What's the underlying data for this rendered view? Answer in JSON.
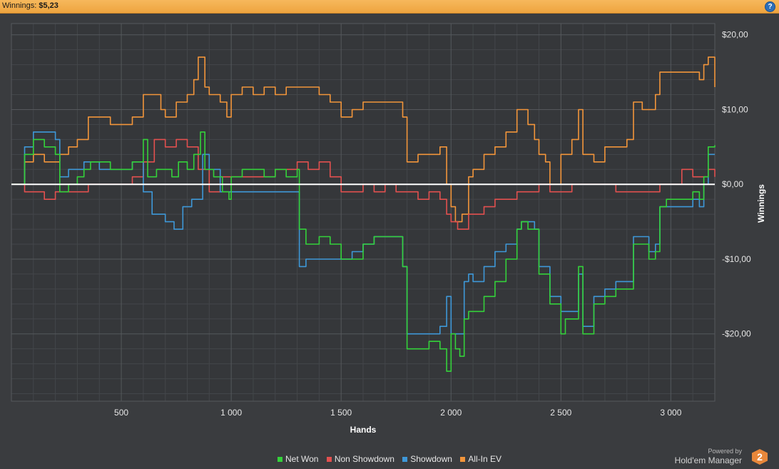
{
  "header": {
    "label": "Winnings:",
    "value": "$5,23",
    "help_icon": "?"
  },
  "colors": {
    "net_won": "#34d13a",
    "non_showdown": "#e2504f",
    "showdown": "#3e98d8",
    "allin_ev": "#f2953a",
    "zero_line": "#ffffff"
  },
  "brand": {
    "powered_by": "Powered by",
    "name": "Hold'em Manager",
    "logo_text": "2"
  },
  "chart_data": {
    "type": "line",
    "xlabel": "Hands",
    "ylabel": "Winnings",
    "xlim": [
      0,
      3200
    ],
    "ylim": [
      -29,
      21.5
    ],
    "x_ticks": [
      500,
      1000,
      1500,
      2000,
      2500,
      3000
    ],
    "x_tick_labels": [
      "500",
      "1 000",
      "1 500",
      "2 000",
      "2 500",
      "3 000"
    ],
    "y_ticks": [
      20,
      10,
      0,
      -10,
      -20
    ],
    "y_tick_labels": [
      "$20,00",
      "$10,00",
      "$0,00",
      "-$10,00",
      "-$20,00"
    ],
    "grid": true,
    "legend_position": "bottom",
    "series": [
      {
        "name": "Net Won",
        "color_key": "net_won",
        "points": [
          [
            0,
            0
          ],
          [
            50,
            0
          ],
          [
            60,
            4
          ],
          [
            100,
            6
          ],
          [
            150,
            5
          ],
          [
            200,
            4
          ],
          [
            220,
            -1
          ],
          [
            260,
            0
          ],
          [
            300,
            1
          ],
          [
            330,
            2
          ],
          [
            360,
            3
          ],
          [
            400,
            3
          ],
          [
            450,
            2
          ],
          [
            500,
            2
          ],
          [
            550,
            3
          ],
          [
            600,
            6
          ],
          [
            620,
            1
          ],
          [
            660,
            2
          ],
          [
            700,
            2
          ],
          [
            730,
            1
          ],
          [
            760,
            3
          ],
          [
            800,
            2
          ],
          [
            830,
            4
          ],
          [
            860,
            7
          ],
          [
            880,
            2
          ],
          [
            920,
            1
          ],
          [
            960,
            -1
          ],
          [
            990,
            -2
          ],
          [
            1000,
            1
          ],
          [
            1050,
            2
          ],
          [
            1100,
            2
          ],
          [
            1150,
            1
          ],
          [
            1200,
            2
          ],
          [
            1250,
            1
          ],
          [
            1300,
            2
          ],
          [
            1310,
            -6
          ],
          [
            1340,
            -8
          ],
          [
            1400,
            -7
          ],
          [
            1450,
            -8
          ],
          [
            1500,
            -10
          ],
          [
            1550,
            -10
          ],
          [
            1600,
            -8
          ],
          [
            1650,
            -7
          ],
          [
            1700,
            -7
          ],
          [
            1760,
            -7
          ],
          [
            1780,
            -11
          ],
          [
            1800,
            -22
          ],
          [
            1850,
            -22
          ],
          [
            1900,
            -21
          ],
          [
            1950,
            -22
          ],
          [
            1980,
            -25
          ],
          [
            2000,
            -20
          ],
          [
            2020,
            -22
          ],
          [
            2040,
            -23
          ],
          [
            2060,
            -18
          ],
          [
            2080,
            -17
          ],
          [
            2100,
            -17
          ],
          [
            2150,
            -15
          ],
          [
            2200,
            -13
          ],
          [
            2250,
            -10
          ],
          [
            2300,
            -6
          ],
          [
            2320,
            -5
          ],
          [
            2350,
            -6
          ],
          [
            2380,
            -6
          ],
          [
            2400,
            -12
          ],
          [
            2450,
            -16
          ],
          [
            2500,
            -20
          ],
          [
            2520,
            -18
          ],
          [
            2550,
            -18
          ],
          [
            2580,
            -11
          ],
          [
            2600,
            -20
          ],
          [
            2650,
            -16
          ],
          [
            2700,
            -15
          ],
          [
            2750,
            -14
          ],
          [
            2800,
            -14
          ],
          [
            2830,
            -8
          ],
          [
            2870,
            -8
          ],
          [
            2900,
            -10
          ],
          [
            2930,
            -9
          ],
          [
            2950,
            -3
          ],
          [
            2980,
            -2
          ],
          [
            3050,
            -2
          ],
          [
            3100,
            -1
          ],
          [
            3130,
            -2
          ],
          [
            3150,
            1
          ],
          [
            3170,
            5
          ],
          [
            3200,
            5.23
          ]
        ]
      },
      {
        "name": "Non Showdown",
        "color_key": "non_showdown",
        "points": [
          [
            0,
            0
          ],
          [
            60,
            -1
          ],
          [
            100,
            -1
          ],
          [
            150,
            -2
          ],
          [
            200,
            -1
          ],
          [
            250,
            -1
          ],
          [
            300,
            -1
          ],
          [
            350,
            0
          ],
          [
            400,
            0
          ],
          [
            450,
            0
          ],
          [
            500,
            0
          ],
          [
            550,
            1
          ],
          [
            600,
            3
          ],
          [
            650,
            6
          ],
          [
            700,
            5
          ],
          [
            750,
            6
          ],
          [
            800,
            5
          ],
          [
            850,
            2
          ],
          [
            900,
            -1
          ],
          [
            950,
            1
          ],
          [
            1000,
            1
          ],
          [
            1100,
            1
          ],
          [
            1200,
            2
          ],
          [
            1300,
            3
          ],
          [
            1350,
            2
          ],
          [
            1400,
            3
          ],
          [
            1450,
            1
          ],
          [
            1500,
            -1
          ],
          [
            1550,
            -1
          ],
          [
            1600,
            0
          ],
          [
            1650,
            -1
          ],
          [
            1700,
            0
          ],
          [
            1750,
            -1
          ],
          [
            1800,
            -1
          ],
          [
            1850,
            -2
          ],
          [
            1900,
            -1
          ],
          [
            1950,
            -2
          ],
          [
            1980,
            -4
          ],
          [
            2000,
            -5
          ],
          [
            2030,
            -6
          ],
          [
            2080,
            -4
          ],
          [
            2150,
            -3
          ],
          [
            2200,
            -2
          ],
          [
            2300,
            -1
          ],
          [
            2350,
            -1
          ],
          [
            2400,
            0
          ],
          [
            2450,
            -1
          ],
          [
            2500,
            -1
          ],
          [
            2550,
            0
          ],
          [
            2600,
            0
          ],
          [
            2650,
            0
          ],
          [
            2700,
            0
          ],
          [
            2750,
            -1
          ],
          [
            2800,
            -1
          ],
          [
            2850,
            -1
          ],
          [
            2900,
            -1
          ],
          [
            2950,
            0
          ],
          [
            3000,
            0
          ],
          [
            3050,
            2
          ],
          [
            3100,
            1
          ],
          [
            3150,
            1
          ],
          [
            3170,
            2
          ],
          [
            3200,
            1
          ]
        ]
      },
      {
        "name": "Showdown",
        "color_key": "showdown",
        "points": [
          [
            0,
            0
          ],
          [
            50,
            0
          ],
          [
            60,
            5
          ],
          [
            100,
            7
          ],
          [
            150,
            7
          ],
          [
            200,
            6
          ],
          [
            220,
            1
          ],
          [
            260,
            2
          ],
          [
            300,
            2
          ],
          [
            330,
            3
          ],
          [
            400,
            2
          ],
          [
            450,
            2
          ],
          [
            500,
            2
          ],
          [
            550,
            3
          ],
          [
            600,
            -1
          ],
          [
            640,
            -4
          ],
          [
            700,
            -5
          ],
          [
            740,
            -6
          ],
          [
            780,
            -3
          ],
          [
            820,
            -2
          ],
          [
            850,
            -2
          ],
          [
            870,
            4
          ],
          [
            900,
            2
          ],
          [
            950,
            -1
          ],
          [
            980,
            -1
          ],
          [
            1000,
            -1
          ],
          [
            1050,
            -1
          ],
          [
            1100,
            -1
          ],
          [
            1200,
            -1
          ],
          [
            1300,
            -1
          ],
          [
            1310,
            -11
          ],
          [
            1340,
            -10
          ],
          [
            1400,
            -10
          ],
          [
            1450,
            -10
          ],
          [
            1500,
            -10
          ],
          [
            1550,
            -9
          ],
          [
            1600,
            -8
          ],
          [
            1650,
            -7
          ],
          [
            1700,
            -7
          ],
          [
            1760,
            -7
          ],
          [
            1780,
            -11
          ],
          [
            1800,
            -20
          ],
          [
            1850,
            -20
          ],
          [
            1900,
            -20
          ],
          [
            1950,
            -19
          ],
          [
            1980,
            -15
          ],
          [
            2000,
            -20
          ],
          [
            2040,
            -20
          ],
          [
            2060,
            -13
          ],
          [
            2080,
            -12
          ],
          [
            2100,
            -13
          ],
          [
            2150,
            -11
          ],
          [
            2200,
            -9
          ],
          [
            2250,
            -8
          ],
          [
            2300,
            -6
          ],
          [
            2320,
            -5
          ],
          [
            2350,
            -5
          ],
          [
            2380,
            -6
          ],
          [
            2400,
            -11
          ],
          [
            2450,
            -15
          ],
          [
            2500,
            -17
          ],
          [
            2520,
            -17
          ],
          [
            2550,
            -17
          ],
          [
            2580,
            -12
          ],
          [
            2600,
            -19
          ],
          [
            2650,
            -15
          ],
          [
            2700,
            -14
          ],
          [
            2750,
            -13
          ],
          [
            2800,
            -13
          ],
          [
            2830,
            -7
          ],
          [
            2870,
            -7
          ],
          [
            2900,
            -9
          ],
          [
            2930,
            -8
          ],
          [
            2950,
            -3
          ],
          [
            3000,
            -3
          ],
          [
            3050,
            -3
          ],
          [
            3100,
            -2
          ],
          [
            3130,
            -3
          ],
          [
            3150,
            0
          ],
          [
            3170,
            4
          ],
          [
            3200,
            4
          ]
        ]
      },
      {
        "name": "All-In EV",
        "color_key": "allin_ev",
        "points": [
          [
            0,
            0
          ],
          [
            50,
            0
          ],
          [
            60,
            3
          ],
          [
            100,
            4
          ],
          [
            150,
            3
          ],
          [
            200,
            3
          ],
          [
            220,
            4
          ],
          [
            260,
            5
          ],
          [
            300,
            6
          ],
          [
            350,
            9
          ],
          [
            400,
            9
          ],
          [
            450,
            8
          ],
          [
            500,
            8
          ],
          [
            550,
            9
          ],
          [
            600,
            12
          ],
          [
            650,
            12
          ],
          [
            680,
            10
          ],
          [
            700,
            9
          ],
          [
            750,
            11
          ],
          [
            800,
            12
          ],
          [
            830,
            14
          ],
          [
            850,
            17
          ],
          [
            880,
            13
          ],
          [
            900,
            12
          ],
          [
            950,
            11
          ],
          [
            980,
            9
          ],
          [
            1000,
            12
          ],
          [
            1050,
            13
          ],
          [
            1100,
            12
          ],
          [
            1150,
            13
          ],
          [
            1200,
            12
          ],
          [
            1250,
            13
          ],
          [
            1300,
            13
          ],
          [
            1350,
            13
          ],
          [
            1400,
            12
          ],
          [
            1450,
            11
          ],
          [
            1500,
            9
          ],
          [
            1550,
            10
          ],
          [
            1600,
            11
          ],
          [
            1650,
            11
          ],
          [
            1700,
            11
          ],
          [
            1760,
            11
          ],
          [
            1780,
            9
          ],
          [
            1800,
            3
          ],
          [
            1850,
            4
          ],
          [
            1900,
            4
          ],
          [
            1950,
            5
          ],
          [
            1980,
            0
          ],
          [
            2000,
            -3
          ],
          [
            2020,
            -5
          ],
          [
            2050,
            -4
          ],
          [
            2080,
            1
          ],
          [
            2100,
            2
          ],
          [
            2150,
            4
          ],
          [
            2200,
            5
          ],
          [
            2250,
            7
          ],
          [
            2300,
            10
          ],
          [
            2350,
            8
          ],
          [
            2380,
            6
          ],
          [
            2400,
            4
          ],
          [
            2430,
            3
          ],
          [
            2450,
            0
          ],
          [
            2500,
            4
          ],
          [
            2550,
            6
          ],
          [
            2580,
            10
          ],
          [
            2600,
            4
          ],
          [
            2650,
            3
          ],
          [
            2700,
            5
          ],
          [
            2750,
            5
          ],
          [
            2800,
            6
          ],
          [
            2830,
            11
          ],
          [
            2870,
            10
          ],
          [
            2900,
            10
          ],
          [
            2930,
            12
          ],
          [
            2950,
            15
          ],
          [
            3000,
            15
          ],
          [
            3050,
            15
          ],
          [
            3100,
            15
          ],
          [
            3130,
            14
          ],
          [
            3150,
            16
          ],
          [
            3170,
            17
          ],
          [
            3200,
            13
          ]
        ]
      }
    ]
  }
}
